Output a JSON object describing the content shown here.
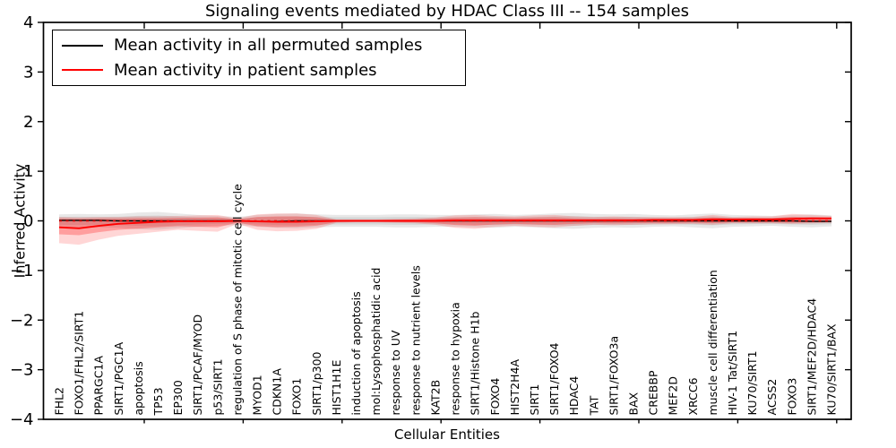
{
  "title": "Signaling events mediated by HDAC Class III -- 154 samples",
  "legend": {
    "items": [
      {
        "label": "Mean activity in all permuted samples",
        "color": "#000000"
      },
      {
        "label": "Mean activity in patient samples",
        "color": "#ff0000"
      }
    ]
  },
  "axes": {
    "ylabel": "Inferred Activity",
    "xlabel": "Cellular Entities",
    "ytick_labels": [
      "4",
      "3",
      "2",
      "1",
      "0",
      "−1",
      "−2",
      "−3",
      "−4"
    ]
  },
  "chart_data": {
    "type": "line",
    "title": "Signaling events mediated by HDAC Class III -- 154 samples",
    "xlabel": "Cellular Entities",
    "ylabel": "Inferred Activity",
    "ylim": [
      -4,
      4
    ],
    "yticks": [
      4,
      3,
      2,
      1,
      0,
      -1,
      -2,
      -3,
      -4
    ],
    "grid": false,
    "legend_position": "upper left",
    "categories": [
      "FHL2",
      "FOXO1/FHL2/SIRT1",
      "PPARGC1A",
      "SIRT1/PGC1A",
      "apoptosis",
      "TP53",
      "EP300",
      "SIRT1/PCAF/MYOD",
      "p53/SIRT1",
      "regulation of S phase of mitotic cell cycle",
      "MYOD1",
      "CDKN1A",
      "FOXO1",
      "SIRT1/p300",
      "HIST1H1E",
      "induction of apoptosis",
      "mol:Lysophosphatidic acid",
      "response to UV",
      "response to nutrient levels",
      "KAT2B",
      "response to hypoxia",
      "SIRT1/Histone H1b",
      "FOXO4",
      "HIST2H4A",
      "SIRT1",
      "SIRT1/FOXO4",
      "HDAC4",
      "TAT",
      "SIRT1/FOXO3a",
      "BAX",
      "CREBBP",
      "MEF2D",
      "XRCC6",
      "muscle cell differentiation",
      "HIV-1 Tat/SIRT1",
      "KU70/SIRT1",
      "ACSS2",
      "FOXO3",
      "SIRT1/MEF2D/HDAC4",
      "KU70/SIRT1/BAX"
    ],
    "series": [
      {
        "name": "Mean activity in all permuted samples",
        "color": "#000000",
        "style": "solid",
        "values": [
          0.01,
          0.01,
          0.01,
          0.0,
          0.0,
          0.0,
          0.0,
          0.0,
          0.0,
          0.0,
          -0.01,
          -0.01,
          0.0,
          0.0,
          0.0,
          0.0,
          0.0,
          0.0,
          0.0,
          0.0,
          0.0,
          0.0,
          0.0,
          0.0,
          0.0,
          0.0,
          0.0,
          0.0,
          0.0,
          0.0,
          0.0,
          0.0,
          0.0,
          0.0,
          0.0,
          0.0,
          0.0,
          0.0,
          -0.01,
          -0.01
        ]
      },
      {
        "name": "Mean activity in patient samples",
        "color": "#ff0000",
        "style": "solid",
        "values": [
          -0.13,
          -0.15,
          -0.1,
          -0.06,
          -0.04,
          -0.02,
          -0.01,
          -0.01,
          -0.01,
          0.0,
          -0.01,
          -0.02,
          -0.02,
          -0.01,
          0.0,
          0.0,
          0.0,
          0.0,
          0.0,
          0.0,
          0.01,
          0.01,
          0.01,
          0.01,
          0.01,
          0.01,
          0.01,
          0.01,
          0.01,
          0.01,
          0.02,
          0.02,
          0.02,
          0.03,
          0.03,
          0.03,
          0.03,
          0.04,
          0.05,
          0.05
        ]
      },
      {
        "name": "center dashed line",
        "color": "#dd0000",
        "style": "dashed",
        "values": [
          0.0,
          0.0,
          0.0,
          0.0,
          0.0,
          0.0,
          0.0,
          0.0,
          0.0,
          0.0,
          0.0,
          0.0,
          0.0,
          0.0,
          0.0,
          0.0,
          0.0,
          0.0,
          0.0,
          0.0,
          0.0,
          0.0,
          0.0,
          0.0,
          0.0,
          0.0,
          0.0,
          0.0,
          0.0,
          0.0,
          0.0,
          0.0,
          0.0,
          0.0,
          0.0,
          0.0,
          0.0,
          0.0,
          0.0,
          0.0
        ]
      }
    ],
    "bands": [
      {
        "name": "permuted samples envelope",
        "color": "#000000",
        "outer_alpha": 0.09,
        "inner_alpha": 0.08,
        "hi": [
          0.13,
          0.14,
          0.13,
          0.14,
          0.17,
          0.18,
          0.15,
          0.12,
          0.1,
          0.08,
          0.12,
          0.14,
          0.15,
          0.13,
          0.12,
          0.12,
          0.12,
          0.13,
          0.13,
          0.12,
          0.12,
          0.13,
          0.14,
          0.12,
          0.13,
          0.15,
          0.16,
          0.14,
          0.13,
          0.14,
          0.12,
          0.11,
          0.13,
          0.15,
          0.12,
          0.11,
          0.1,
          0.12,
          0.13,
          0.11
        ],
        "lo": [
          -0.13,
          -0.14,
          -0.13,
          -0.14,
          -0.17,
          -0.18,
          -0.15,
          -0.12,
          -0.1,
          -0.08,
          -0.12,
          -0.14,
          -0.15,
          -0.13,
          -0.12,
          -0.12,
          -0.12,
          -0.13,
          -0.13,
          -0.12,
          -0.12,
          -0.13,
          -0.14,
          -0.12,
          -0.13,
          -0.15,
          -0.16,
          -0.14,
          -0.13,
          -0.14,
          -0.12,
          -0.11,
          -0.13,
          -0.15,
          -0.12,
          -0.11,
          -0.1,
          -0.12,
          -0.13,
          -0.11
        ]
      },
      {
        "name": "patient samples envelope",
        "color": "#ff0000",
        "outer_alpha": 0.16,
        "inner_alpha": 0.26,
        "hi": [
          0.08,
          0.07,
          0.08,
          0.08,
          0.09,
          0.09,
          0.1,
          0.11,
          0.12,
          0.05,
          0.13,
          0.15,
          0.15,
          0.12,
          0.03,
          0.03,
          0.03,
          0.04,
          0.05,
          0.07,
          0.11,
          0.12,
          0.1,
          0.09,
          0.11,
          0.12,
          0.09,
          0.08,
          0.09,
          0.08,
          0.08,
          0.08,
          0.08,
          0.12,
          0.08,
          0.09,
          0.09,
          0.14,
          0.12,
          0.1
        ],
        "lo": [
          -0.45,
          -0.48,
          -0.38,
          -0.3,
          -0.26,
          -0.22,
          -0.18,
          -0.2,
          -0.22,
          -0.06,
          -0.18,
          -0.21,
          -0.2,
          -0.16,
          -0.04,
          -0.03,
          -0.03,
          -0.04,
          -0.05,
          -0.08,
          -0.14,
          -0.16,
          -0.12,
          -0.1,
          -0.12,
          -0.13,
          -0.1,
          -0.08,
          -0.09,
          -0.08,
          -0.07,
          -0.07,
          -0.06,
          -0.08,
          -0.05,
          -0.05,
          -0.05,
          -0.06,
          -0.05,
          -0.04
        ]
      }
    ]
  }
}
